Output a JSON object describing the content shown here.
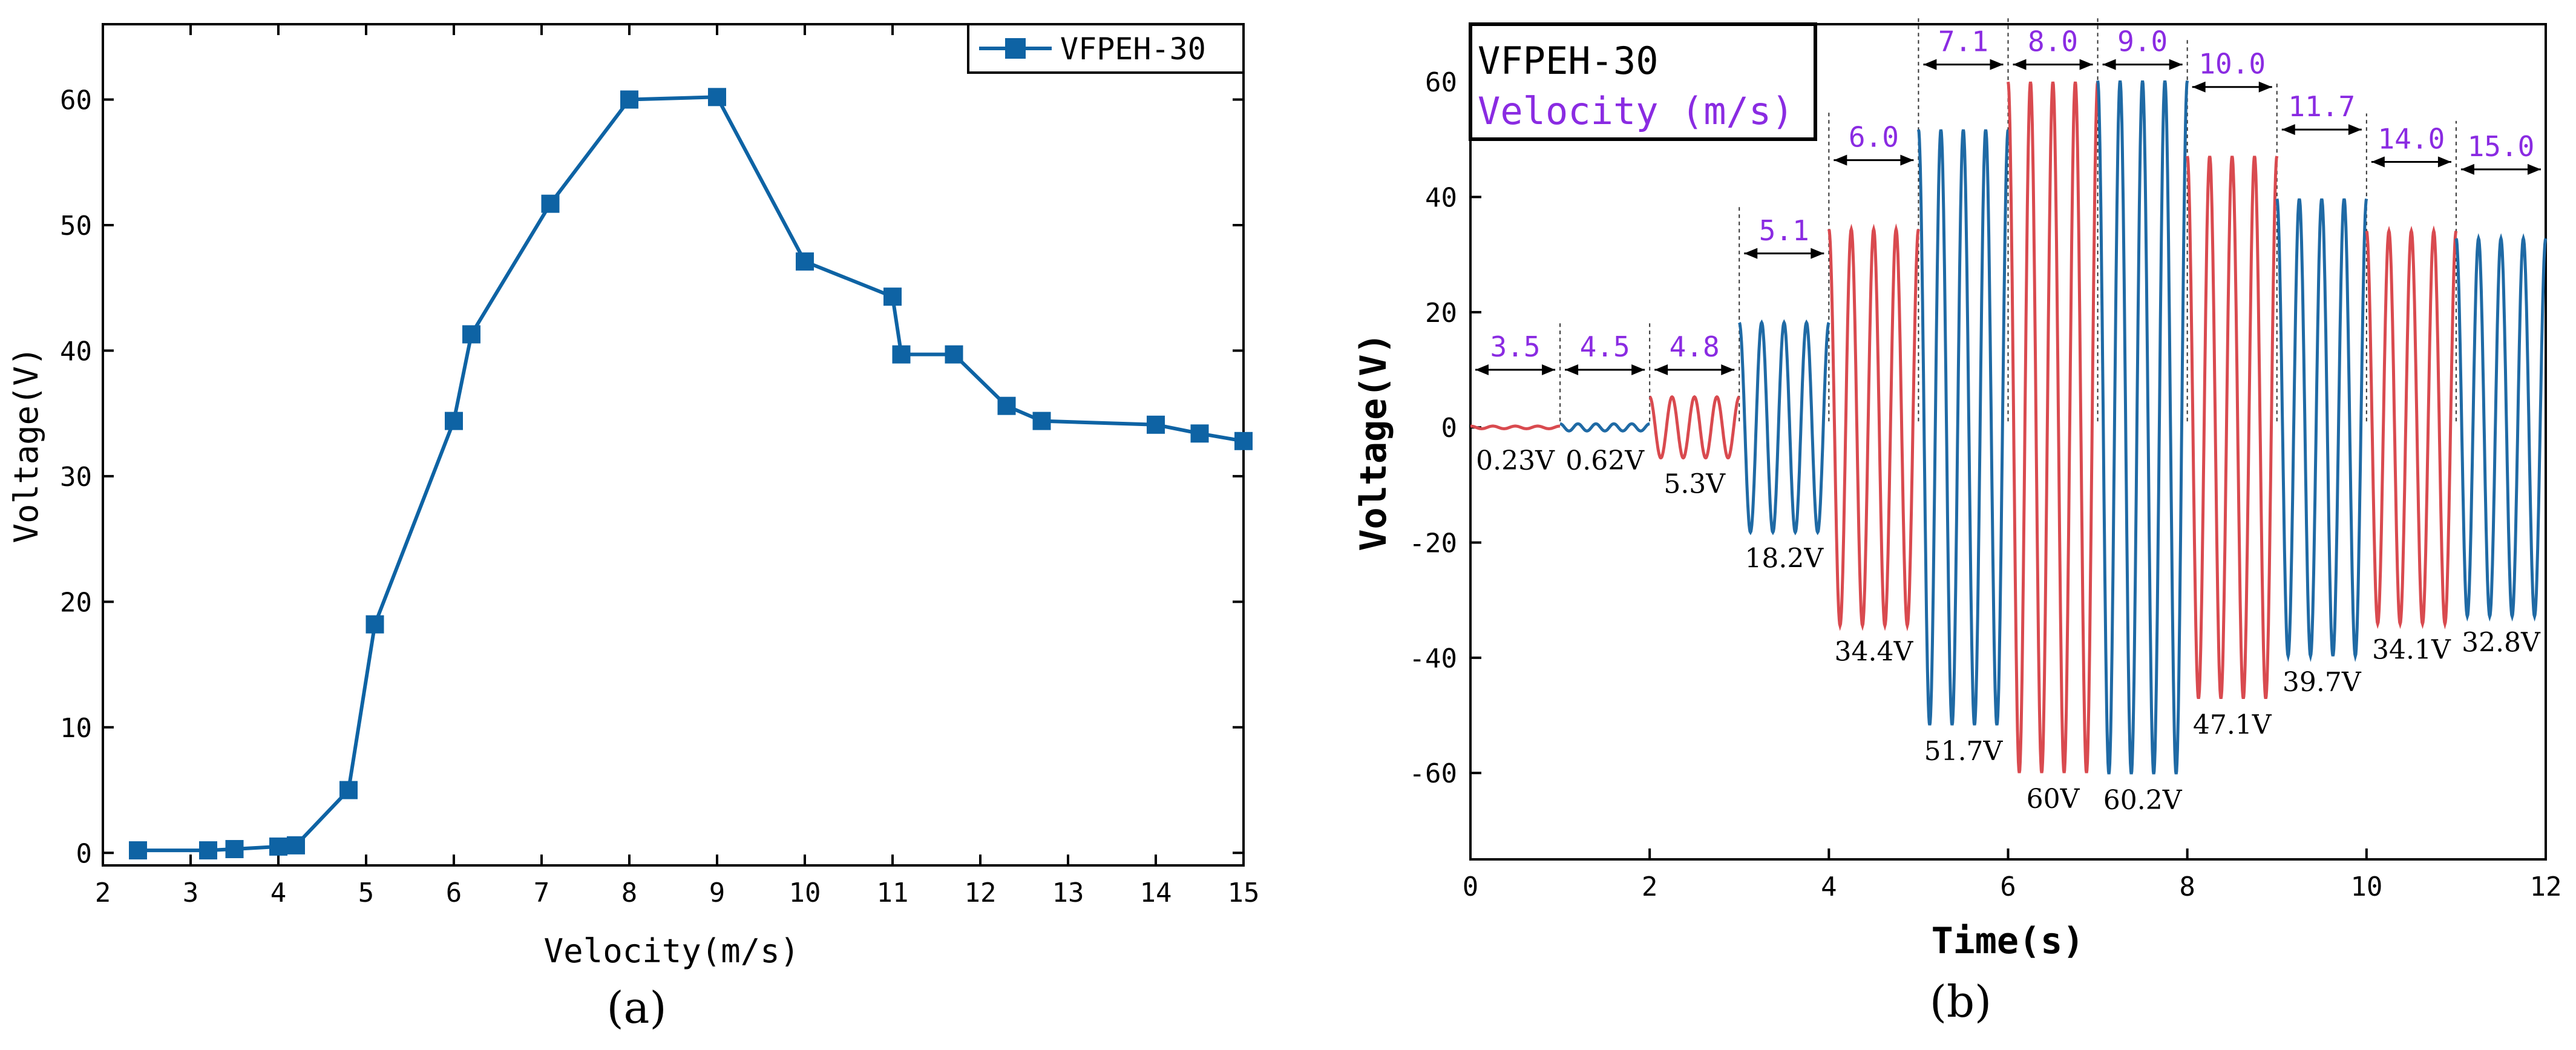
{
  "chart_data": [
    {
      "panel": "(a)",
      "type": "line",
      "title": "",
      "xlabel": "Velocity(m/s)",
      "ylabel": "Voltage(V)",
      "xlim": [
        2,
        15
      ],
      "ylim": [
        -1,
        66
      ],
      "xticks": [
        2,
        3,
        4,
        5,
        6,
        7,
        8,
        9,
        10,
        11,
        12,
        13,
        14,
        15
      ],
      "yticks": [
        0,
        10,
        20,
        30,
        40,
        50,
        60
      ],
      "legend": "top-right",
      "series": [
        {
          "name": "VFPEH-30",
          "color": "#0e63a4",
          "marker": "square",
          "x": [
            2.4,
            3.2,
            3.5,
            4.0,
            4.2,
            4.8,
            5.1,
            6.0,
            6.2,
            7.1,
            8.0,
            9.0,
            10.0,
            11.0,
            11.1,
            11.7,
            12.3,
            12.7,
            14.0,
            14.5,
            15.0
          ],
          "y": [
            0.2,
            0.2,
            0.3,
            0.5,
            0.6,
            5.0,
            18.2,
            34.4,
            41.3,
            51.7,
            60.0,
            60.2,
            47.1,
            44.3,
            39.7,
            39.7,
            35.6,
            34.4,
            34.1,
            33.4,
            32.8
          ]
        }
      ]
    },
    {
      "panel": "(b)",
      "type": "line",
      "xlabel": "Time(s)",
      "ylabel": "Voltage(V)",
      "xlim": [
        0,
        12
      ],
      "ylim": [
        -75,
        70
      ],
      "xticks": [
        0,
        2,
        4,
        6,
        8,
        10,
        12
      ],
      "yticks": [
        -60,
        -40,
        -20,
        0,
        20,
        40,
        60
      ],
      "legend_title": "VFPEH-30",
      "legend_subtitle": "Velocity (m/s)",
      "colors": {
        "odd": "#d94a4f",
        "even": "#1f6aa5"
      },
      "segments": [
        {
          "t0": 0,
          "t1": 1,
          "velocity": "3.5",
          "amplitude": 0.23,
          "cycles": 4,
          "peak_label": "0.23V"
        },
        {
          "t0": 1,
          "t1": 2,
          "velocity": "4.5",
          "amplitude": 0.62,
          "cycles": 5,
          "peak_label": "0.62V"
        },
        {
          "t0": 2,
          "t1": 3,
          "velocity": "4.8",
          "amplitude": 5.3,
          "cycles": 4,
          "peak_label": "5.3V"
        },
        {
          "t0": 3,
          "t1": 4,
          "velocity": "5.1",
          "amplitude": 18.2,
          "cycles": 4,
          "peak_label": "18.2V"
        },
        {
          "t0": 4,
          "t1": 5,
          "velocity": "6.0",
          "amplitude": 34.4,
          "cycles": 4,
          "peak_label": "34.4V"
        },
        {
          "t0": 5,
          "t1": 6,
          "velocity": "7.1",
          "amplitude": 51.7,
          "cycles": 4,
          "peak_label": "51.7V"
        },
        {
          "t0": 6,
          "t1": 7,
          "velocity": "8.0",
          "amplitude": 60.0,
          "cycles": 4,
          "peak_label": "60V"
        },
        {
          "t0": 7,
          "t1": 8,
          "velocity": "9.0",
          "amplitude": 60.2,
          "cycles": 4,
          "peak_label": "60.2V"
        },
        {
          "t0": 8,
          "t1": 9,
          "velocity": "10.0",
          "amplitude": 47.1,
          "cycles": 4,
          "peak_label": "47.1V"
        },
        {
          "t0": 9,
          "t1": 10,
          "velocity": "11.7",
          "amplitude": 39.7,
          "cycles": 4,
          "peak_label": "39.7V"
        },
        {
          "t0": 10,
          "t1": 11,
          "velocity": "14.0",
          "amplitude": 34.1,
          "cycles": 4,
          "peak_label": "34.1V"
        },
        {
          "t0": 11,
          "t1": 12,
          "velocity": "15.0",
          "amplitude": 32.8,
          "cycles": 4,
          "peak_label": "32.8V"
        }
      ]
    }
  ]
}
